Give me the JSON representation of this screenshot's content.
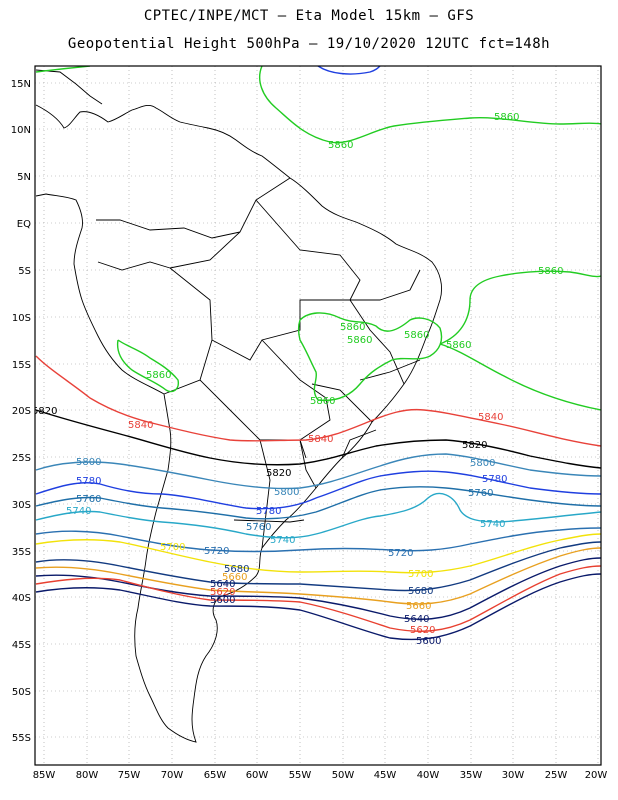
{
  "title": {
    "line1": "CPTEC/INPE/MCT –  Eta Model 15km – GFS",
    "line2": "Geopotential Height 500hPa – 19/10/2020 12UTC fct=148h"
  },
  "axes": {
    "lat_labels": [
      "15N",
      "10N",
      "5N",
      "EQ",
      "5S",
      "10S",
      "15S",
      "20S",
      "25S",
      "30S",
      "35S",
      "40S",
      "45S",
      "50S",
      "55S"
    ],
    "lon_labels": [
      "85W",
      "80W",
      "75W",
      "70W",
      "65W",
      "60W",
      "55W",
      "50W",
      "45W",
      "40W",
      "35W",
      "30W",
      "25W",
      "20W"
    ]
  },
  "contour_labels": [
    {
      "text": "5860",
      "color": "#22cc22"
    },
    {
      "text": "5860",
      "color": "#22cc22"
    },
    {
      "text": "5860",
      "color": "#22cc22"
    },
    {
      "text": "5860",
      "color": "#22cc22"
    },
    {
      "text": "5860",
      "color": "#22cc22"
    },
    {
      "text": "5860",
      "color": "#22cc22"
    },
    {
      "text": "5860",
      "color": "#22cc22"
    },
    {
      "text": "5860",
      "color": "#22cc22"
    },
    {
      "text": "5860",
      "color": "#22cc22"
    },
    {
      "text": "5840",
      "color": "#e8423a"
    },
    {
      "text": "5840",
      "color": "#e8423a"
    },
    {
      "text": "5840",
      "color": "#e8423a"
    },
    {
      "text": "5820",
      "color": "#000000"
    },
    {
      "text": "5820",
      "color": "#000000"
    },
    {
      "text": "5820",
      "color": "#000000"
    },
    {
      "text": "5800",
      "color": "#3a86b8"
    },
    {
      "text": "5800",
      "color": "#3a86b8"
    },
    {
      "text": "5800",
      "color": "#3a86b8"
    },
    {
      "text": "5780",
      "color": "#1f3fe0"
    },
    {
      "text": "5780",
      "color": "#1f3fe0"
    },
    {
      "text": "5780",
      "color": "#1f3fe0"
    },
    {
      "text": "5760",
      "color": "#1f6fa8"
    },
    {
      "text": "5760",
      "color": "#1f6fa8"
    },
    {
      "text": "5760",
      "color": "#1f6fa8"
    },
    {
      "text": "5740",
      "color": "#28a8c8"
    },
    {
      "text": "5740",
      "color": "#28a8c8"
    },
    {
      "text": "5740",
      "color": "#28a8c8"
    },
    {
      "text": "5720",
      "color": "#2a70b0"
    },
    {
      "text": "5720",
      "color": "#2a70b0"
    },
    {
      "text": "5700",
      "color": "#f2e20a"
    },
    {
      "text": "5700",
      "color": "#f2e20a"
    },
    {
      "text": "5680",
      "color": "#123a80"
    },
    {
      "text": "5680",
      "color": "#123a80"
    },
    {
      "text": "5660",
      "color": "#e8a020"
    },
    {
      "text": "5660",
      "color": "#e8a020"
    },
    {
      "text": "5640",
      "color": "#0a1a6a"
    },
    {
      "text": "5640",
      "color": "#0a1a6a"
    },
    {
      "text": "5620",
      "color": "#e84030"
    },
    {
      "text": "5620",
      "color": "#e84030"
    },
    {
      "text": "5600",
      "color": "#0a1a6a"
    },
    {
      "text": "5600",
      "color": "#0a1a6a"
    }
  ]
}
